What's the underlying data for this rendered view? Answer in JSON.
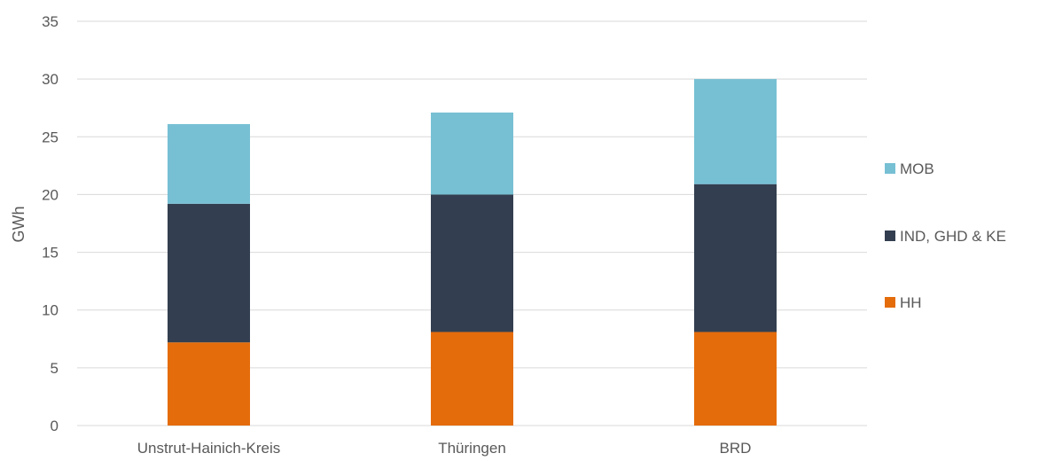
{
  "chart_data": {
    "type": "bar",
    "stacked": true,
    "title": "",
    "xlabel": "",
    "ylabel": "GWh",
    "ylim": [
      0,
      35
    ],
    "yticks": [
      0,
      5,
      10,
      15,
      20,
      25,
      30,
      35
    ],
    "grid": true,
    "legend_position": "right",
    "categories": [
      "Unstrut-Hainich-Kreis",
      "Thüringen",
      "BRD"
    ],
    "series": [
      {
        "name": "HH",
        "color": "#E46C0A",
        "values": [
          7.2,
          8.1,
          8.1
        ]
      },
      {
        "name": "IND, GHD & KE",
        "color": "#333F50",
        "values": [
          12.0,
          11.9,
          12.8
        ]
      },
      {
        "name": "MOB",
        "color": "#77C0D4",
        "values": [
          6.9,
          7.1,
          9.1
        ]
      }
    ]
  }
}
